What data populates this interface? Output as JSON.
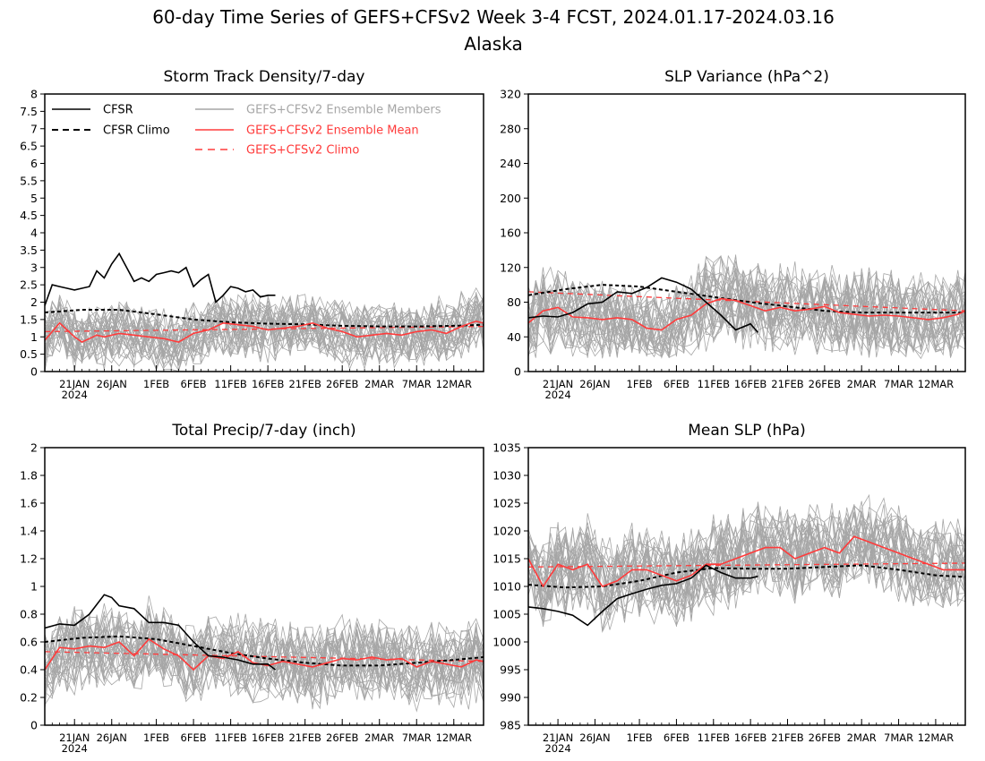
{
  "title_line1": "60-day Time Series of GEFS+CFSv2 Week 3-4 FCST, 2024.01.17-2024.03.16",
  "title_line2": "Alaska",
  "x_ticks": [
    "21JAN",
    "26JAN",
    "1FEB",
    "6FEB",
    "11FEB",
    "16FEB",
    "21FEB",
    "26FEB",
    "2MAR",
    "7MAR",
    "12MAR"
  ],
  "x_tick_days": [
    4,
    9,
    15,
    20,
    25,
    30,
    35,
    40,
    45,
    50,
    55
  ],
  "x_year_label": "2024",
  "colors": {
    "obs": "#000000",
    "members": "#a6a6a6",
    "mean": "#ff3b3b",
    "gefs_climo": "#ff3b3b"
  },
  "legend": [
    {
      "label": "CFSR",
      "style": "solid",
      "color": "#000000"
    },
    {
      "label": "CFSR Climo",
      "style": "dashed",
      "color": "#000000"
    },
    {
      "label": "GEFS+CFSv2 Ensemble Members",
      "style": "solid",
      "color": "#a6a6a6"
    },
    {
      "label": "GEFS+CFSv2 Ensemble Mean",
      "style": "solid",
      "color": "#ff3b3b"
    },
    {
      "label": "GEFS+CFSv2 Climo",
      "style": "dashed",
      "color": "#ff3b3b"
    }
  ],
  "chart_data": [
    {
      "type": "line",
      "title": "Storm Track Density/7-day",
      "ylim": [
        0,
        8
      ],
      "yticks": [
        "0",
        "0.5",
        "1",
        "1.5",
        "2",
        "2.5",
        "3",
        "3.5",
        "4",
        "4.5",
        "5",
        "5.5",
        "6",
        "6.5",
        "7",
        "7.5",
        "8"
      ],
      "ytick_values": [
        0,
        0.5,
        1,
        1.5,
        2,
        2.5,
        3,
        3.5,
        4,
        4.5,
        5,
        5.5,
        6,
        6.5,
        7,
        7.5,
        8
      ],
      "xlim": [
        0,
        59
      ],
      "legend_position": "top",
      "member_spread": {
        "count": 30,
        "center": 1.2,
        "amplitude": 1.0,
        "min": 0,
        "max": 3.8
      },
      "series": [
        {
          "name": "CFSR",
          "role": "obs",
          "x": [
            0,
            1,
            2,
            3,
            4,
            5,
            6,
            7,
            8,
            9,
            10,
            11,
            12,
            13,
            14,
            15,
            16,
            17,
            18,
            19,
            20,
            21,
            22,
            23,
            24,
            25,
            26,
            27,
            28,
            29,
            30,
            31
          ],
          "values": [
            1.9,
            2.5,
            2.45,
            2.4,
            2.35,
            2.4,
            2.45,
            2.9,
            2.7,
            3.1,
            3.4,
            3.0,
            2.6,
            2.7,
            2.6,
            2.8,
            2.85,
            2.9,
            2.85,
            3.0,
            2.45,
            2.65,
            2.8,
            2.0,
            2.2,
            2.45,
            2.4,
            2.3,
            2.35,
            2.15,
            2.2,
            2.2
          ]
        },
        {
          "name": "CFSR Climo",
          "role": "climo_obs",
          "x": [
            0,
            5,
            10,
            15,
            20,
            25,
            30,
            35,
            40,
            45,
            50,
            55,
            59
          ],
          "values": [
            1.7,
            1.78,
            1.78,
            1.65,
            1.5,
            1.42,
            1.38,
            1.36,
            1.32,
            1.3,
            1.3,
            1.32,
            1.35
          ]
        },
        {
          "name": "GEFS+CFSv2 Ensemble Mean",
          "role": "mean",
          "x": [
            0,
            2,
            3,
            4,
            5,
            6,
            7,
            8,
            10,
            12,
            14,
            16,
            18,
            20,
            22,
            24,
            26,
            28,
            30,
            32,
            34,
            36,
            38,
            40,
            42,
            44,
            46,
            48,
            50,
            52,
            54,
            56,
            58,
            59
          ],
          "values": [
            0.9,
            1.4,
            1.2,
            1.0,
            0.85,
            0.95,
            1.05,
            1.0,
            1.1,
            1.05,
            1.0,
            0.95,
            0.85,
            1.1,
            1.2,
            1.4,
            1.35,
            1.3,
            1.2,
            1.25,
            1.3,
            1.4,
            1.25,
            1.15,
            1.0,
            1.05,
            1.1,
            1.05,
            1.15,
            1.2,
            1.1,
            1.3,
            1.45,
            1.4
          ]
        },
        {
          "name": "GEFS+CFSv2 Climo",
          "role": "climo_model",
          "x": [
            0,
            59
          ],
          "values": [
            1.15,
            1.3
          ]
        }
      ]
    },
    {
      "type": "line",
      "title": "SLP Variance (hPa^2)",
      "ylim": [
        0,
        320
      ],
      "yticks": [
        "0",
        "40",
        "80",
        "120",
        "160",
        "200",
        "240",
        "280",
        "320"
      ],
      "ytick_values": [
        0,
        40,
        80,
        120,
        160,
        200,
        240,
        280,
        320
      ],
      "xlim": [
        0,
        59
      ],
      "member_spread": {
        "count": 30,
        "center": 75,
        "amplitude": 55,
        "min": 15,
        "max": 225
      },
      "series": [
        {
          "name": "CFSR",
          "role": "obs",
          "x": [
            0,
            2,
            4,
            6,
            8,
            10,
            12,
            14,
            16,
            18,
            20,
            22,
            24,
            26,
            28,
            30,
            31
          ],
          "values": [
            62,
            64,
            63,
            68,
            78,
            80,
            92,
            90,
            97,
            108,
            103,
            95,
            80,
            65,
            48,
            55,
            45
          ]
        },
        {
          "name": "CFSR Climo",
          "role": "climo_obs",
          "x": [
            0,
            5,
            10,
            15,
            20,
            25,
            30,
            35,
            40,
            45,
            50,
            55,
            59
          ],
          "values": [
            88,
            95,
            100,
            98,
            92,
            86,
            80,
            75,
            70,
            68,
            68,
            68,
            68
          ]
        },
        {
          "name": "GEFS+CFSv2 Ensemble Mean",
          "role": "mean",
          "x": [
            0,
            2,
            4,
            6,
            8,
            10,
            12,
            14,
            16,
            18,
            20,
            22,
            24,
            26,
            28,
            30,
            32,
            34,
            36,
            38,
            40,
            42,
            44,
            46,
            48,
            50,
            52,
            54,
            56,
            58,
            59
          ],
          "values": [
            56,
            70,
            74,
            63,
            62,
            60,
            62,
            60,
            50,
            48,
            60,
            65,
            78,
            84,
            82,
            76,
            70,
            74,
            70,
            72,
            75,
            68,
            66,
            64,
            65,
            64,
            62,
            60,
            62,
            66,
            70
          ]
        },
        {
          "name": "GEFS+CFSv2 Climo",
          "role": "climo_model",
          "x": [
            0,
            59
          ],
          "values": [
            92,
            70
          ]
        }
      ]
    },
    {
      "type": "line",
      "title": "Total Precip/7-day (inch)",
      "ylim": [
        0,
        2
      ],
      "yticks": [
        "0",
        "0.2",
        "0.4",
        "0.6",
        "0.8",
        "1",
        "1.2",
        "1.4",
        "1.6",
        "1.8",
        "2"
      ],
      "ytick_values": [
        0,
        0.2,
        0.4,
        0.6,
        0.8,
        1,
        1.2,
        1.4,
        1.6,
        1.8,
        2
      ],
      "xlim": [
        0,
        59
      ],
      "member_spread": {
        "count": 30,
        "center": 0.5,
        "amplitude": 0.32,
        "min": 0.1,
        "max": 1.05
      },
      "series": [
        {
          "name": "CFSR",
          "role": "obs",
          "x": [
            0,
            2,
            4,
            6,
            8,
            9,
            10,
            12,
            14,
            16,
            18,
            20,
            21,
            22,
            24,
            26,
            28,
            30,
            31
          ],
          "values": [
            0.7,
            0.73,
            0.72,
            0.8,
            0.94,
            0.92,
            0.86,
            0.84,
            0.74,
            0.74,
            0.72,
            0.6,
            0.55,
            0.5,
            0.49,
            0.47,
            0.44,
            0.44,
            0.4
          ]
        },
        {
          "name": "CFSR Climo",
          "role": "climo_obs",
          "x": [
            0,
            5,
            10,
            15,
            20,
            25,
            30,
            35,
            40,
            45,
            50,
            55,
            59
          ],
          "values": [
            0.6,
            0.63,
            0.64,
            0.62,
            0.57,
            0.52,
            0.48,
            0.45,
            0.43,
            0.43,
            0.45,
            0.47,
            0.49
          ]
        },
        {
          "name": "GEFS+CFSv2 Ensemble Mean",
          "role": "mean",
          "x": [
            0,
            2,
            4,
            6,
            8,
            10,
            12,
            14,
            16,
            18,
            20,
            22,
            24,
            26,
            28,
            30,
            32,
            34,
            36,
            38,
            40,
            42,
            44,
            46,
            48,
            50,
            52,
            54,
            56,
            58,
            59
          ],
          "values": [
            0.4,
            0.56,
            0.55,
            0.57,
            0.56,
            0.6,
            0.5,
            0.62,
            0.55,
            0.5,
            0.4,
            0.5,
            0.48,
            0.53,
            0.45,
            0.43,
            0.46,
            0.44,
            0.42,
            0.45,
            0.48,
            0.47,
            0.49,
            0.47,
            0.48,
            0.42,
            0.46,
            0.44,
            0.42,
            0.47,
            0.46
          ]
        },
        {
          "name": "GEFS+CFSv2 Climo",
          "role": "climo_model",
          "x": [
            0,
            59
          ],
          "values": [
            0.53,
            0.46
          ]
        }
      ]
    },
    {
      "type": "line",
      "title": "Mean SLP (hPa)",
      "ylim": [
        985,
        1035
      ],
      "yticks": [
        "985",
        "990",
        "995",
        "1000",
        "1005",
        "1010",
        "1015",
        "1020",
        "1025",
        "1030",
        "1035"
      ],
      "ytick_values": [
        985,
        990,
        995,
        1000,
        1005,
        1010,
        1015,
        1020,
        1025,
        1030,
        1035
      ],
      "xlim": [
        0,
        59
      ],
      "member_spread": {
        "count": 30,
        "center": 1013,
        "amplitude": 9,
        "min": 996,
        "max": 1032
      },
      "series": [
        {
          "name": "CFSR",
          "role": "obs",
          "x": [
            0,
            2,
            4,
            6,
            8,
            10,
            12,
            14,
            16,
            18,
            20,
            22,
            24,
            26,
            28,
            30,
            31
          ],
          "values": [
            1006.3,
            1006,
            1005.5,
            1004.8,
            1003,
            1005.5,
            1007.8,
            1008.7,
            1009.5,
            1010.2,
            1010.5,
            1011.5,
            1013.8,
            1012.5,
            1011.5,
            1011.5,
            1011.8
          ]
        },
        {
          "name": "CFSR Climo",
          "role": "climo_obs",
          "x": [
            0,
            5,
            10,
            15,
            20,
            25,
            30,
            35,
            40,
            45,
            50,
            55,
            59
          ],
          "values": [
            1010.3,
            1009.8,
            1010,
            1011,
            1012.5,
            1013.3,
            1013.2,
            1013.2,
            1013.5,
            1013.8,
            1013,
            1012,
            1011.7
          ]
        },
        {
          "name": "GEFS+CFSv2 Ensemble Mean",
          "role": "mean",
          "x": [
            0,
            2,
            4,
            6,
            8,
            10,
            12,
            14,
            16,
            18,
            20,
            22,
            24,
            26,
            28,
            30,
            32,
            34,
            36,
            38,
            40,
            42,
            44,
            46,
            48,
            50,
            52,
            54,
            56,
            58,
            59
          ],
          "values": [
            1015,
            1010,
            1014,
            1013,
            1014,
            1010,
            1011,
            1013,
            1013,
            1012,
            1011,
            1012,
            1014,
            1014,
            1015,
            1016,
            1017,
            1017,
            1015,
            1016,
            1017,
            1016,
            1019,
            1018,
            1017,
            1016,
            1015,
            1014,
            1013,
            1013,
            1013
          ]
        },
        {
          "name": "GEFS+CFSv2 Climo",
          "role": "climo_model",
          "x": [
            0,
            59
          ],
          "values": [
            1013.5,
            1014.2
          ]
        }
      ]
    }
  ]
}
